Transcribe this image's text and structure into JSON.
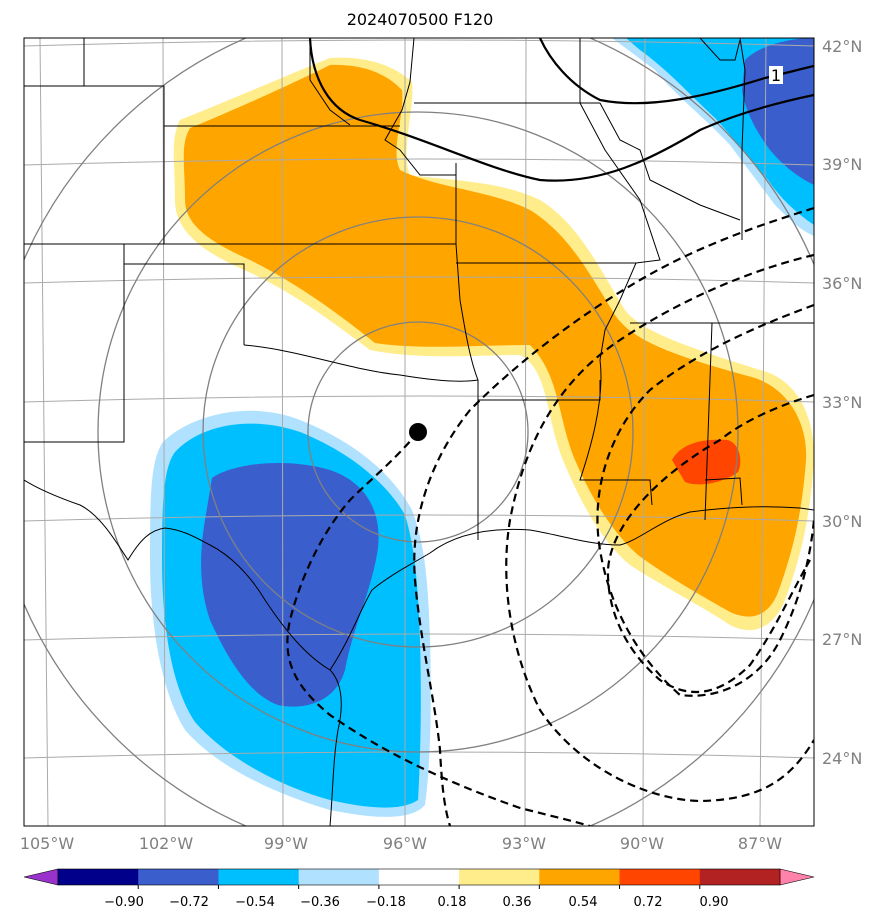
{
  "title": "2024070500 F120",
  "lat_labels": [
    "42°N",
    "39°N",
    "36°N",
    "33°N",
    "30°N",
    "27°N",
    "24°N"
  ],
  "lon_labels": [
    "105°W",
    "102°W",
    "99°W",
    "96°W",
    "93°W",
    "90°W",
    "87°W"
  ],
  "contour_label": "1",
  "colorbar": {
    "tick_labels": [
      "−0.90",
      "−0.72",
      "−0.54",
      "−0.36",
      "−0.18",
      "0.18",
      "0.36",
      "0.54",
      "0.72",
      "0.90"
    ],
    "colors": [
      "#9932cc",
      "#00008b",
      "#3a5fcd",
      "#00bfff",
      "#b0e2ff",
      "#ffffff",
      "#ffec8b",
      "#ffa500",
      "#ff4500",
      "#b22222",
      "#ff82ab"
    ]
  },
  "colors": {
    "dark_blue": "#3a5fcd",
    "deep_sky_blue": "#00bfff",
    "light_blue": "#b0e2ff",
    "light_yellow": "#ffec8b",
    "orange": "#ffa500",
    "orange_red": "#ff4500",
    "grid": "#aaaaaa",
    "range_rings": "#808080"
  },
  "center_marker": {
    "lat": 32.3,
    "lon": -95.8
  }
}
